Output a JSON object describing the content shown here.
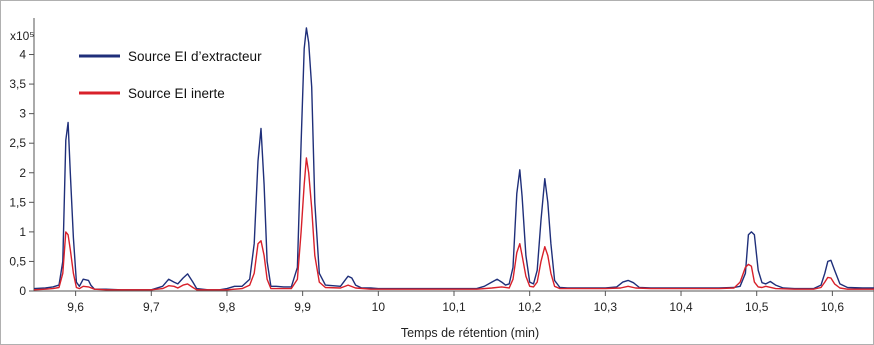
{
  "chart_data": {
    "type": "line",
    "title": "",
    "xlabel": "Temps de rétention (min)",
    "ylabel": "",
    "y_multiplier": "x10⁵",
    "xlim": [
      9.545,
      10.655
    ],
    "ylim": [
      0,
      4.55
    ],
    "x_ticks": [
      9.6,
      9.7,
      9.8,
      9.9,
      10.0,
      10.1,
      10.2,
      10.3,
      10.4,
      10.5,
      10.6
    ],
    "x_tick_labels": [
      "9,6",
      "9,7",
      "9,8",
      "9,9",
      "10",
      "10,1",
      "10,2",
      "10,3",
      "10,4",
      "10,5",
      "10,6"
    ],
    "y_ticks": [
      0,
      0.5,
      1,
      1.5,
      2,
      2.5,
      3,
      3.5,
      4
    ],
    "y_tick_labels": [
      "0",
      "0,5",
      "1",
      "1,5",
      "2",
      "2,5",
      "3",
      "3,5",
      "4"
    ],
    "legend_position": "top-left",
    "grid": false,
    "series": [
      {
        "name": "Source EI d’extracteur",
        "color": "#1f2f7a",
        "x": [
          9.545,
          9.56,
          9.57,
          9.578,
          9.583,
          9.587,
          9.59,
          9.593,
          9.597,
          9.601,
          9.605,
          9.61,
          9.617,
          9.62,
          9.625,
          9.64,
          9.66,
          9.7,
          9.715,
          9.723,
          9.73,
          9.735,
          9.742,
          9.748,
          9.755,
          9.76,
          9.775,
          9.79,
          9.8,
          9.81,
          9.82,
          9.83,
          9.836,
          9.841,
          9.845,
          9.849,
          9.853,
          9.858,
          9.865,
          9.875,
          9.885,
          9.893,
          9.898,
          9.902,
          9.905,
          9.908,
          9.912,
          9.916,
          9.922,
          9.93,
          9.94,
          9.95,
          9.957,
          9.96,
          9.965,
          9.97,
          9.978,
          9.99,
          10.0,
          10.02,
          10.05,
          10.08,
          10.1,
          10.13,
          10.14,
          10.15,
          10.157,
          10.163,
          10.168,
          10.173,
          10.178,
          10.183,
          10.187,
          10.19,
          10.195,
          10.2,
          10.205,
          10.21,
          10.215,
          10.22,
          10.224,
          10.228,
          10.233,
          10.24,
          10.25,
          10.28,
          10.3,
          10.315,
          10.323,
          10.33,
          10.337,
          10.345,
          10.36,
          10.4,
          10.45,
          10.47,
          10.478,
          10.485,
          10.489,
          10.493,
          10.497,
          10.502,
          10.507,
          10.512,
          10.518,
          10.525,
          10.535,
          10.55,
          10.575,
          10.585,
          10.59,
          10.594,
          10.598,
          10.603,
          10.61,
          10.62,
          10.64,
          10.655
        ],
        "values": [
          0.04,
          0.05,
          0.07,
          0.1,
          0.5,
          2.55,
          2.85,
          2.0,
          0.9,
          0.15,
          0.08,
          0.2,
          0.18,
          0.1,
          0.03,
          0.03,
          0.02,
          0.02,
          0.08,
          0.2,
          0.15,
          0.12,
          0.22,
          0.29,
          0.15,
          0.04,
          0.02,
          0.02,
          0.04,
          0.08,
          0.08,
          0.2,
          0.8,
          2.2,
          2.75,
          1.8,
          0.5,
          0.08,
          0.08,
          0.07,
          0.07,
          0.4,
          2.5,
          4.1,
          4.45,
          4.2,
          3.45,
          1.5,
          0.3,
          0.1,
          0.09,
          0.08,
          0.2,
          0.25,
          0.22,
          0.1,
          0.05,
          0.05,
          0.04,
          0.04,
          0.04,
          0.04,
          0.04,
          0.04,
          0.08,
          0.15,
          0.2,
          0.15,
          0.1,
          0.12,
          0.4,
          1.65,
          2.05,
          1.6,
          0.6,
          0.15,
          0.12,
          0.35,
          1.2,
          1.9,
          1.5,
          0.8,
          0.18,
          0.06,
          0.05,
          0.05,
          0.05,
          0.07,
          0.15,
          0.18,
          0.14,
          0.06,
          0.05,
          0.05,
          0.05,
          0.06,
          0.08,
          0.3,
          0.95,
          1.0,
          0.95,
          0.35,
          0.14,
          0.12,
          0.16,
          0.1,
          0.05,
          0.04,
          0.04,
          0.1,
          0.3,
          0.5,
          0.52,
          0.35,
          0.12,
          0.06,
          0.05,
          0.05
        ]
      },
      {
        "name": "Source EI inerte",
        "color": "#d8202a",
        "x": [
          9.545,
          9.56,
          9.57,
          9.578,
          9.583,
          9.587,
          9.59,
          9.593,
          9.597,
          9.601,
          9.605,
          9.61,
          9.617,
          9.625,
          9.64,
          9.66,
          9.7,
          9.715,
          9.723,
          9.73,
          9.735,
          9.742,
          9.748,
          9.755,
          9.76,
          9.775,
          9.79,
          9.8,
          9.82,
          9.83,
          9.836,
          9.841,
          9.845,
          9.849,
          9.853,
          9.858,
          9.865,
          9.875,
          9.885,
          9.893,
          9.898,
          9.902,
          9.905,
          9.908,
          9.912,
          9.916,
          9.922,
          9.93,
          9.95,
          9.96,
          9.97,
          9.99,
          10.02,
          10.05,
          10.08,
          10.1,
          10.13,
          10.15,
          10.163,
          10.173,
          10.178,
          10.183,
          10.187,
          10.19,
          10.195,
          10.2,
          10.205,
          10.21,
          10.215,
          10.22,
          10.224,
          10.228,
          10.233,
          10.24,
          10.25,
          10.3,
          10.32,
          10.33,
          10.34,
          10.36,
          10.4,
          10.45,
          10.47,
          10.478,
          10.485,
          10.489,
          10.493,
          10.497,
          10.502,
          10.507,
          10.512,
          10.525,
          10.55,
          10.575,
          10.585,
          10.59,
          10.594,
          10.598,
          10.603,
          10.61,
          10.62,
          10.64,
          10.655
        ],
        "values": [
          0.02,
          0.03,
          0.04,
          0.06,
          0.3,
          1.0,
          0.95,
          0.7,
          0.3,
          0.06,
          0.04,
          0.08,
          0.07,
          0.03,
          0.02,
          0.02,
          0.02,
          0.04,
          0.09,
          0.08,
          0.05,
          0.1,
          0.12,
          0.06,
          0.02,
          0.02,
          0.02,
          0.02,
          0.04,
          0.1,
          0.3,
          0.8,
          0.85,
          0.6,
          0.2,
          0.04,
          0.04,
          0.04,
          0.04,
          0.2,
          1.0,
          1.8,
          2.25,
          2.0,
          1.4,
          0.6,
          0.15,
          0.06,
          0.05,
          0.1,
          0.05,
          0.03,
          0.03,
          0.03,
          0.03,
          0.03,
          0.03,
          0.05,
          0.07,
          0.05,
          0.2,
          0.65,
          0.8,
          0.6,
          0.25,
          0.08,
          0.07,
          0.15,
          0.5,
          0.75,
          0.6,
          0.3,
          0.08,
          0.04,
          0.04,
          0.04,
          0.05,
          0.08,
          0.05,
          0.04,
          0.04,
          0.04,
          0.05,
          0.15,
          0.4,
          0.45,
          0.42,
          0.15,
          0.07,
          0.06,
          0.08,
          0.04,
          0.03,
          0.03,
          0.06,
          0.15,
          0.23,
          0.22,
          0.12,
          0.05,
          0.03,
          0.03,
          0.03
        ]
      }
    ]
  }
}
